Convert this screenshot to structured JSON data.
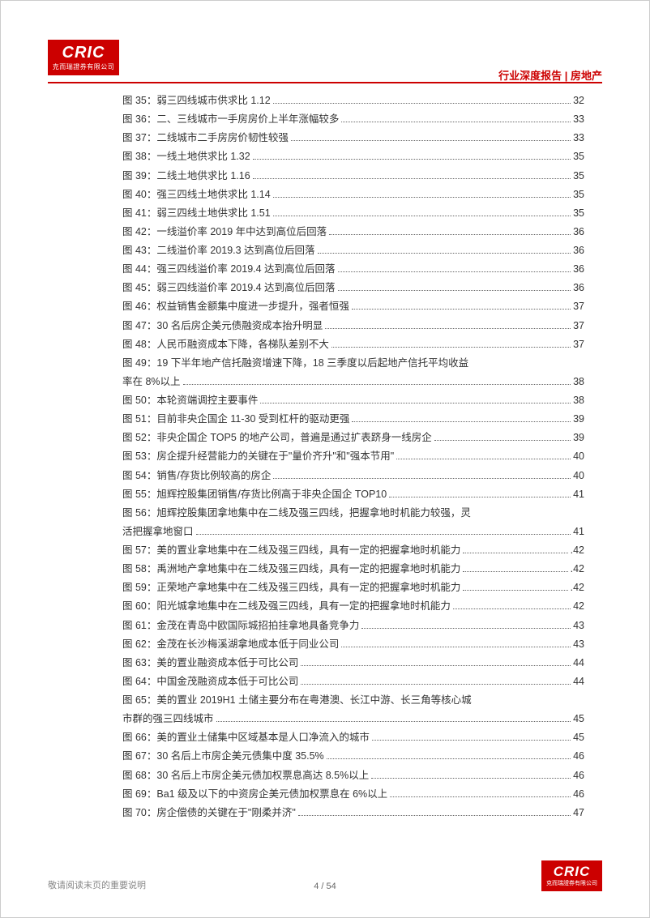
{
  "logo": {
    "text_big": "CRIC",
    "text_small": "克而瑞證券有限公司"
  },
  "header": {
    "category": "行业深度报告 | 房地产"
  },
  "colors": {
    "brand_red": "#cc0000",
    "text": "#333333",
    "footer_text": "#888888"
  },
  "fonts": {
    "body_size_pt": 12.5,
    "footer_size_pt": 11
  },
  "toc_entries": [
    {
      "label": "图 35：弱三四线城市供求比 1.12",
      "page": "32"
    },
    {
      "label": "图 36：二、三线城市一手房房价上半年涨幅较多",
      "page": "33"
    },
    {
      "label": "图 37：二线城市二手房房价韧性较强",
      "page": "33"
    },
    {
      "label": "图 38：一线土地供求比 1.32",
      "page": "35"
    },
    {
      "label": "图 39：二线土地供求比 1.16",
      "page": "35"
    },
    {
      "label": "图 40：强三四线土地供求比 1.14",
      "page": "35"
    },
    {
      "label": "图 41：弱三四线土地供求比 1.51",
      "page": "35"
    },
    {
      "label": "图 42：一线溢价率 2019 年中达到高位后回落",
      "page": "36"
    },
    {
      "label": "图 43：二线溢价率 2019.3 达到高位后回落",
      "page": "36"
    },
    {
      "label": "图 44：强三四线溢价率 2019.4 达到高位后回落",
      "page": "36"
    },
    {
      "label": "图 45：弱三四线溢价率 2019.4 达到高位后回落",
      "page": "36"
    },
    {
      "label": "图 46：权益销售金额集中度进一步提升，强者恒强",
      "page": "37"
    },
    {
      "label": "图 47：30 名后房企美元债融资成本抬升明显",
      "page": "37"
    },
    {
      "label": "图 48：人民币融资成本下降，各梯队差别不大",
      "page": "37"
    },
    {
      "label_line1": "图 49：19 下半年地产信托融资增速下降，18 三季度以后起地产信托平均收益",
      "label_line2": "率在 8%以上",
      "page": "38",
      "wrap": true
    },
    {
      "label": "图 50：本轮资端调控主要事件",
      "page": "38"
    },
    {
      "label": "图 51：目前非央企国企 11-30 受到杠杆的驱动更强",
      "page": "39"
    },
    {
      "label": "图 52：非央企国企 TOP5 的地产公司，普遍是通过扩表跻身一线房企",
      "page": "39"
    },
    {
      "label": "图 53：房企提升经营能力的关键在于\"量价齐升\"和\"强本节用\"",
      "page": "40"
    },
    {
      "label": "图 54：销售/存货比例较高的房企",
      "page": "40"
    },
    {
      "label": "图 55：旭辉控股集团销售/存货比例高于非央企国企 TOP10",
      "page": "41"
    },
    {
      "label_line1": "图 56：旭辉控股集团拿地集中在二线及强三四线，把握拿地时机能力较强，灵",
      "label_line2": "活把握拿地窗口",
      "page": "41",
      "wrap": true
    },
    {
      "label": "图 57：美的置业拿地集中在二线及强三四线，具有一定的把握拿地时机能力",
      "page": ".42"
    },
    {
      "label": "图 58：禹洲地产拿地集中在二线及强三四线，具有一定的把握拿地时机能力",
      "page": ".42"
    },
    {
      "label": "图 59：正荣地产拿地集中在二线及强三四线，具有一定的把握拿地时机能力",
      "page": ".42"
    },
    {
      "label": "图 60：阳光城拿地集中在二线及强三四线，具有一定的把握拿地时机能力",
      "page": "42"
    },
    {
      "label": "图 61：金茂在青岛中欧国际城招拍挂拿地具备竞争力",
      "page": "43"
    },
    {
      "label": "图 62：金茂在长沙梅溪湖拿地成本低于同业公司",
      "page": "43"
    },
    {
      "label": "图 63：美的置业融资成本低于可比公司",
      "page": "44"
    },
    {
      "label": "图 64：中国金茂融资成本低于可比公司",
      "page": "44"
    },
    {
      "label_line1": "图 65：美的置业 2019H1 土储主要分布在粤港澳、长江中游、长三角等核心城",
      "label_line2": "市群的强三四线城市",
      "page": "45",
      "wrap": true
    },
    {
      "label": "图 66：美的置业土储集中区域基本是人口净流入的城市",
      "page": "45"
    },
    {
      "label": "图 67：30 名后上市房企美元债集中度 35.5%",
      "page": "46"
    },
    {
      "label": "图 68：30 名后上市房企美元债加权票息高达 8.5%以上",
      "page": "46"
    },
    {
      "label": "图 69：Ba1 级及以下的中资房企美元债加权票息在 6%以上",
      "page": "46"
    },
    {
      "label": "图 70：房企偿债的关键在于\"刚柔并济\"",
      "page": "47"
    }
  ],
  "footer": {
    "disclaimer": "敬请阅读末页的重要说明",
    "page_num": "4 / 54"
  }
}
